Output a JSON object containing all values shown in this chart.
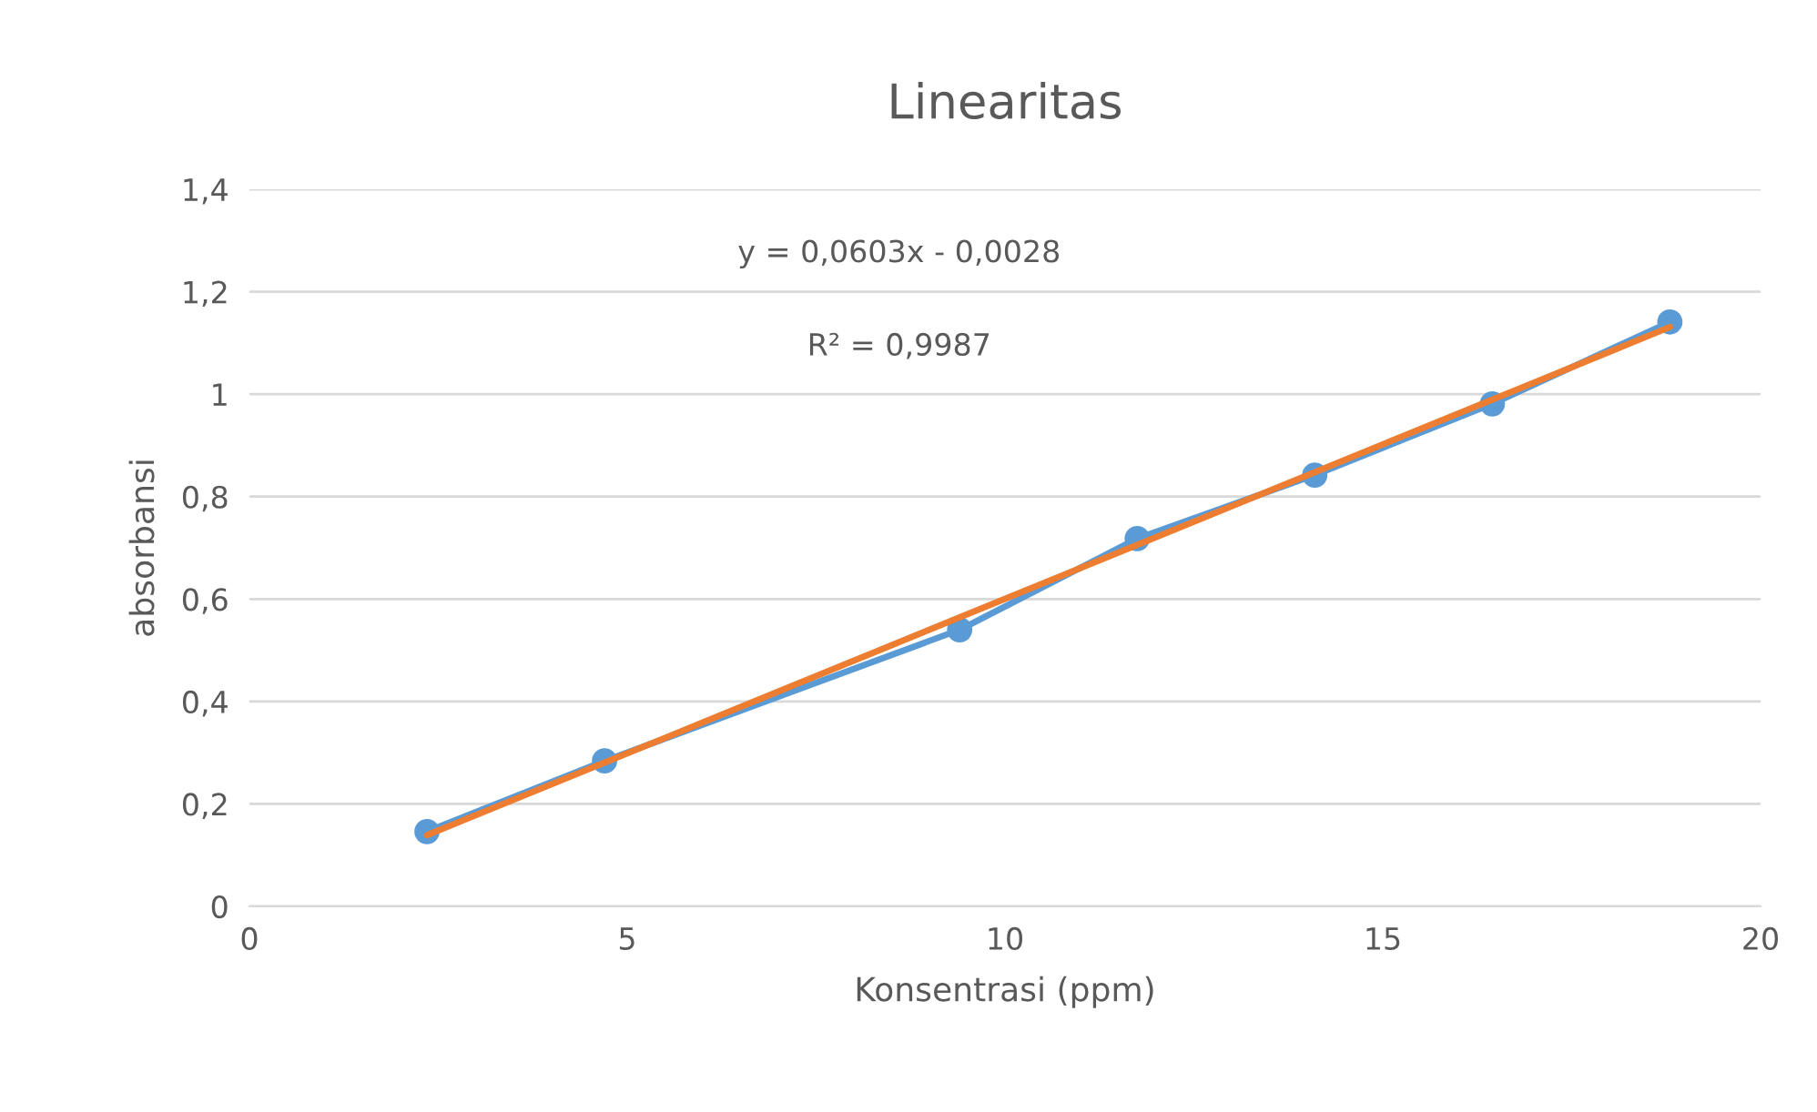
{
  "chart_data": {
    "type": "line",
    "title": "Linearitas",
    "xlabel": "Konsentrasi (ppm)",
    "ylabel": "absorbansi",
    "x": [
      2.35,
      4.7,
      9.4,
      11.75,
      14.1,
      16.45,
      18.8
    ],
    "series": [
      {
        "color": "#5b9bd5",
        "marker": "circle",
        "values": [
          0.146,
          0.284,
          0.54,
          0.718,
          0.842,
          0.981,
          1.141
        ]
      },
      {
        "color": "#ed7d31",
        "marker": "none",
        "x": [
          2.35,
          18.8
        ],
        "values": [
          0.139,
          1.131
        ]
      }
    ],
    "annotations": [
      "y = 0,0603x - 0,0028",
      "R² = 0,9987"
    ],
    "xlim": [
      0,
      20
    ],
    "xticks": [
      0,
      5,
      10,
      15,
      20
    ],
    "ylim": [
      0,
      1.4
    ],
    "yticks": [
      0,
      {
        "value": 0.2,
        "label": "0,2"
      },
      {
        "value": 0.4,
        "label": "0,4"
      },
      {
        "value": 0.6,
        "label": "0,6"
      },
      {
        "value": 0.8,
        "label": "0,8"
      },
      1,
      {
        "value": 1.2,
        "label": "1,2"
      },
      {
        "value": 1.4,
        "label": "1,4"
      }
    ],
    "grid": "y"
  }
}
